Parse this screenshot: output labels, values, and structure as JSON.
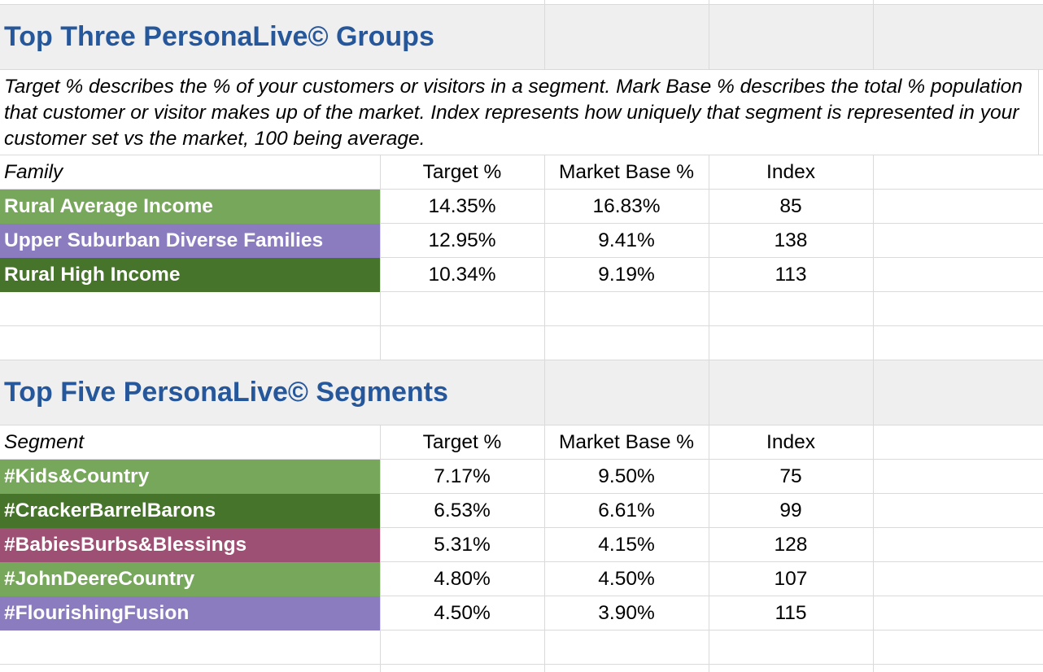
{
  "colors": {
    "title": "#26579a",
    "band": "#efefef",
    "gridline": "#dadada",
    "light_green": "#77a75b",
    "dark_green": "#47742b",
    "purple": "#8b7bbf",
    "mauve": "#9e5074"
  },
  "groups": {
    "title": "Top Three PersonaLive© Groups",
    "description": "Target % describes the % of your customers or visitors in a segment. Mark Base % describes the total % population that customer or visitor makes up of the market. Index represents how uniquely that segment is represented in your customer set vs the market, 100 being average.",
    "headers": {
      "label": "Family",
      "target": "Target %",
      "market": "Market Base %",
      "index": "Index"
    },
    "rows": [
      {
        "label": "Rural Average Income",
        "target": "14.35%",
        "market": "16.83%",
        "index": "85",
        "color": "#77a75b"
      },
      {
        "label": "Upper Suburban Diverse Families",
        "target": "12.95%",
        "market": "9.41%",
        "index": "138",
        "color": "#8b7bbf"
      },
      {
        "label": "Rural High Income",
        "target": "10.34%",
        "market": "9.19%",
        "index": "113",
        "color": "#47742b"
      }
    ]
  },
  "segments": {
    "title": "Top Five PersonaLive© Segments",
    "headers": {
      "label": "Segment",
      "target": "Target %",
      "market": "Market Base %",
      "index": "Index"
    },
    "rows": [
      {
        "label": "#Kids&Country",
        "target": "7.17%",
        "market": "9.50%",
        "index": "75",
        "color": "#77a75b"
      },
      {
        "label": "#CrackerBarrelBarons",
        "target": "6.53%",
        "market": "6.61%",
        "index": "99",
        "color": "#47742b"
      },
      {
        "label": "#BabiesBurbs&Blessings",
        "target": "5.31%",
        "market": "4.15%",
        "index": "128",
        "color": "#9e5074"
      },
      {
        "label": "#JohnDeereCountry",
        "target": "4.80%",
        "market": "4.50%",
        "index": "107",
        "color": "#77a75b"
      },
      {
        "label": "#FlourishingFusion",
        "target": "4.50%",
        "market": "3.90%",
        "index": "115",
        "color": "#8b7bbf"
      }
    ]
  }
}
